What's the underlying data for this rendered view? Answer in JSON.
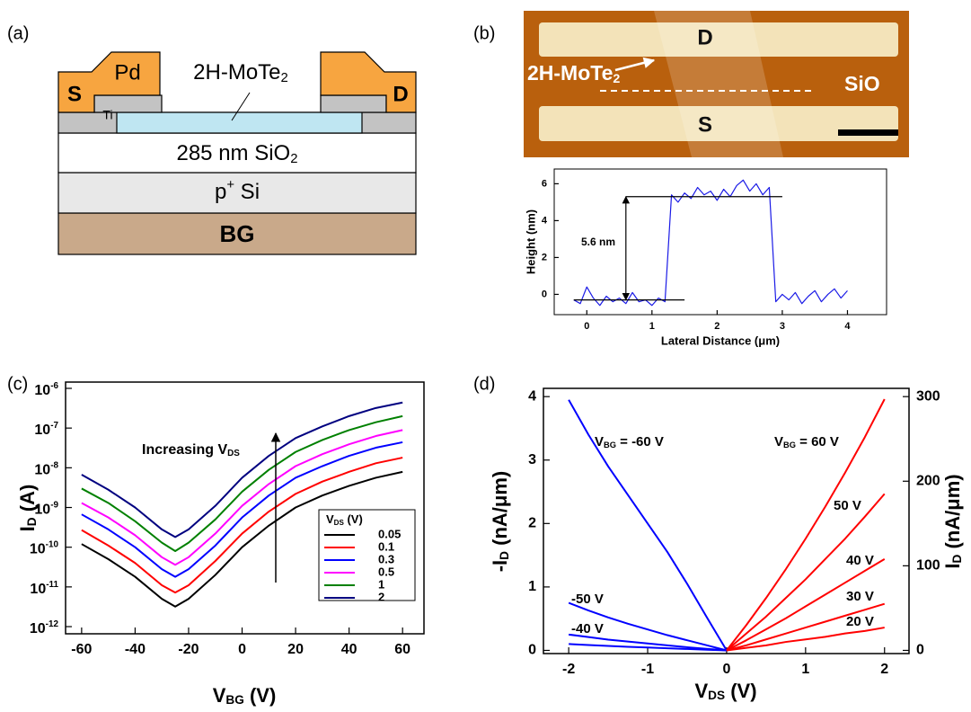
{
  "panel_labels": [
    "(a)",
    "(b)",
    "(c)",
    "(d)"
  ],
  "diagram": {
    "source": "S",
    "drain": "D",
    "metal": "Pd",
    "adhesion": "Ti",
    "channel": {
      "main": "2H-MoTe",
      "sub": "2"
    },
    "oxide": {
      "main": "285 nm SiO",
      "sub": "2"
    },
    "substrate": {
      "main": "p",
      "sup": "+",
      "rest": " Si"
    },
    "gate": "BG"
  },
  "afm_image": {
    "drain": "D",
    "source": "S",
    "flake": {
      "main": "2H-MoTe",
      "sub": "2"
    },
    "substrate": "SiO"
  },
  "chart_data": [
    {
      "type": "line",
      "x_label": "Lateral Distance (μm)",
      "y_label": "Height (nm)",
      "xlim": [
        -0.5,
        4.6
      ],
      "ylim": [
        -1.1,
        6.8
      ],
      "xticks": [
        0,
        1,
        2,
        3,
        4
      ],
      "yticks": [
        0,
        2,
        4,
        6
      ],
      "x": [
        -0.2,
        -0.1,
        0,
        0.1,
        0.2,
        0.3,
        0.4,
        0.5,
        0.6,
        0.7,
        0.8,
        0.9,
        1.0,
        1.1,
        1.2,
        1.3,
        1.4,
        1.5,
        1.6,
        1.7,
        1.8,
        1.9,
        2.0,
        2.1,
        2.2,
        2.3,
        2.4,
        2.5,
        2.6,
        2.7,
        2.8,
        2.9,
        3.0,
        3.1,
        3.2,
        3.3,
        3.4,
        3.5,
        3.6,
        3.7,
        3.8,
        3.9,
        4.0
      ],
      "series": [
        {
          "color": "#1a1ae6",
          "values": [
            -0.3,
            -0.5,
            0.4,
            -0.2,
            -0.6,
            -0.1,
            -0.4,
            -0.2,
            -0.5,
            0.1,
            -0.4,
            -0.3,
            -0.6,
            -0.2,
            -0.4,
            5.4,
            5.0,
            5.5,
            5.2,
            5.8,
            5.4,
            5.6,
            5.1,
            5.7,
            5.3,
            5.9,
            6.2,
            5.6,
            6.0,
            5.4,
            5.8,
            -0.4,
            0.0,
            -0.3,
            0.1,
            -0.5,
            -0.1,
            0.2,
            -0.4,
            0.0,
            0.3,
            -0.2,
            0.2
          ]
        }
      ],
      "reference_lines": [
        {
          "y": -0.3,
          "x": [
            -0.2,
            1.5
          ]
        },
        {
          "y": 5.3,
          "x": [
            0.6,
            3.0
          ]
        }
      ],
      "annotation": "5.6 nm"
    },
    {
      "type": "line",
      "x_label": {
        "main": "V",
        "sub": "BG",
        "rest": " (V)"
      },
      "y_label": {
        "main": "I",
        "sub": "D",
        "rest": " (A)"
      },
      "y_log": true,
      "xlim": [
        -66,
        68
      ],
      "ylim": [
        6.6e-13,
        1.44e-06
      ],
      "xticks": [
        -60,
        -40,
        -20,
        0,
        20,
        40,
        60
      ],
      "yticks": [
        {
          "value": 1e-06,
          "label": "10",
          "sup": "-6"
        },
        {
          "value": 1e-07,
          "label": "10",
          "sup": "-7"
        },
        {
          "value": 1e-08,
          "label": "10",
          "sup": "-8"
        },
        {
          "value": 1e-09,
          "label": "10",
          "sup": "-9"
        },
        {
          "value": 1e-10,
          "label": "10",
          "sup": "-10"
        },
        {
          "value": 1e-11,
          "label": "10",
          "sup": "-11"
        },
        {
          "value": 1e-12,
          "label": "10",
          "sup": "-12"
        }
      ],
      "x": [
        -60,
        -50,
        -40,
        -30,
        -25,
        -20,
        -10,
        0,
        10,
        20,
        30,
        40,
        50,
        60
      ],
      "legend": "lower right",
      "legend_title": {
        "main": "V",
        "sub": "DS",
        "rest": " (V)"
      },
      "series": [
        {
          "name": "0.05",
          "color": "#000000",
          "values": [
            1.2e-10,
            5e-11,
            1.8e-11,
            5e-12,
            3.2e-12,
            5e-12,
            2e-11,
            1e-10,
            3.5e-10,
            1e-09,
            2e-09,
            3.5e-09,
            5.6e-09,
            7.9e-09
          ]
        },
        {
          "name": "0.1",
          "color": "#ff0000",
          "values": [
            2.7e-10,
            1.1e-10,
            4e-11,
            1.1e-11,
            7.2e-12,
            1.1e-11,
            4.5e-11,
            2.2e-10,
            7.9e-10,
            2.2e-09,
            4.5e-09,
            7.9e-09,
            1.3e-08,
            1.8e-08
          ]
        },
        {
          "name": "0.3",
          "color": "#0000ff",
          "values": [
            6.7e-10,
            2.8e-10,
            1e-10,
            2.8e-11,
            1.8e-11,
            2.8e-11,
            1.1e-10,
            5.6e-10,
            2e-09,
            5.6e-09,
            1.1e-08,
            2e-08,
            3.2e-08,
            4.4e-08
          ]
        },
        {
          "name": "0.5",
          "color": "#ff00ff",
          "values": [
            1.3e-09,
            5.6e-10,
            2e-10,
            5.6e-11,
            3.6e-11,
            5.6e-11,
            2.2e-10,
            1.1e-09,
            3.9e-09,
            1.1e-08,
            2.2e-08,
            3.9e-08,
            6.3e-08,
            8.9e-08
          ]
        },
        {
          "name": "1",
          "color": "#008000",
          "values": [
            3e-09,
            1.3e-09,
            4.5e-10,
            1.3e-10,
            8e-11,
            1.3e-10,
            5e-10,
            2.5e-09,
            8.9e-09,
            2.5e-08,
            5e-08,
            8.9e-08,
            1.4e-07,
            2e-07
          ]
        },
        {
          "name": "2",
          "color": "#000080",
          "values": [
            6.7e-09,
            2.8e-09,
            1e-09,
            2.8e-10,
            1.8e-10,
            2.8e-10,
            1.1e-09,
            5.6e-09,
            2e-08,
            5.6e-08,
            1.1e-07,
            2e-07,
            3.2e-07,
            4.4e-07
          ]
        }
      ],
      "annotation": {
        "main": "Increasing V",
        "sub": "DS"
      }
    },
    {
      "type": "line",
      "x_label": {
        "main": "V",
        "sub": "DS",
        "rest": " (V)"
      },
      "y_label": {
        "main": "-I",
        "sub": "D",
        "rest": " (nA/μm)"
      },
      "y2_label": {
        "main": "I",
        "sub": "D",
        "rest": " (nA/μm)"
      },
      "xlim": [
        -2.32,
        2.31
      ],
      "ylim": [
        -0.05,
        4.13
      ],
      "y2lim": [
        -3.75,
        309.75
      ],
      "xticks": [
        -2,
        -1,
        0,
        1,
        2
      ],
      "yticks": [
        0,
        1,
        2,
        3,
        4
      ],
      "y2ticks": [
        0,
        100,
        200,
        300
      ],
      "series": [
        {
          "name": {
            "main": "V",
            "sub": "BG",
            "rest": " = -60 V"
          },
          "color": "#0000ff",
          "x": [
            -2,
            -1.75,
            -1.5,
            -1.25,
            -1,
            -0.75,
            -0.5,
            -0.25,
            0
          ],
          "values": [
            3.95,
            3.4,
            2.9,
            2.45,
            2.0,
            1.55,
            1.05,
            0.52,
            0
          ]
        },
        {
          "name": "-50 V",
          "color": "#0000ff",
          "x": [
            -2,
            -1.75,
            -1.5,
            -1.25,
            -1,
            -0.75,
            -0.5,
            -0.25,
            0
          ],
          "values": [
            0.75,
            0.63,
            0.52,
            0.42,
            0.33,
            0.24,
            0.16,
            0.08,
            0
          ]
        },
        {
          "name": "-40 V",
          "color": "#0000ff",
          "x": [
            -2,
            -1.75,
            -1.5,
            -1.25,
            -1,
            -0.75,
            -0.5,
            -0.25,
            0
          ],
          "values": [
            0.25,
            0.21,
            0.17,
            0.14,
            0.11,
            0.08,
            0.05,
            0.025,
            0
          ]
        },
        {
          "color": "#0000ff",
          "x": [
            -2,
            -1.75,
            -1.5,
            -1.25,
            -1,
            -0.75,
            -0.5,
            -0.25,
            0
          ],
          "values": [
            0.1,
            0.085,
            0.07,
            0.057,
            0.045,
            0.033,
            0.022,
            0.011,
            0
          ]
        },
        {
          "name": {
            "main": "V",
            "sub": "BG",
            "rest": " = 60 V"
          },
          "color": "#ff0000",
          "axis": "y2",
          "x": [
            0,
            0.25,
            0.5,
            0.75,
            1,
            1.25,
            1.5,
            1.75,
            2
          ],
          "values": [
            0,
            30,
            62,
            96,
            132,
            170,
            210,
            252,
            297
          ]
        },
        {
          "name": "50 V",
          "color": "#ff0000",
          "axis": "y2",
          "x": [
            0,
            0.25,
            0.5,
            0.75,
            1,
            1.25,
            1.5,
            1.75,
            2
          ],
          "values": [
            0,
            20,
            40,
            62,
            84,
            108,
            132,
            158,
            185
          ]
        },
        {
          "name": "40 V",
          "color": "#ff0000",
          "axis": "y2",
          "x": [
            0,
            0.25,
            0.5,
            0.75,
            1,
            1.25,
            1.5,
            1.75,
            2
          ],
          "values": [
            0,
            12,
            25,
            38,
            52,
            66,
            80,
            94,
            108
          ]
        },
        {
          "name": "30 V",
          "color": "#ff0000",
          "axis": "y2",
          "x": [
            0,
            0.25,
            0.5,
            0.75,
            1,
            1.25,
            1.5,
            1.75,
            2
          ],
          "values": [
            0,
            6,
            13,
            20,
            27,
            34,
            41,
            48,
            55
          ]
        },
        {
          "name": "20 V",
          "color": "#ff0000",
          "axis": "y2",
          "x": [
            0,
            0.25,
            0.5,
            0.75,
            1,
            1.25,
            1.5,
            1.75,
            2
          ],
          "values": [
            0,
            3,
            6,
            10,
            13,
            16,
            20,
            23,
            27
          ]
        }
      ]
    }
  ]
}
